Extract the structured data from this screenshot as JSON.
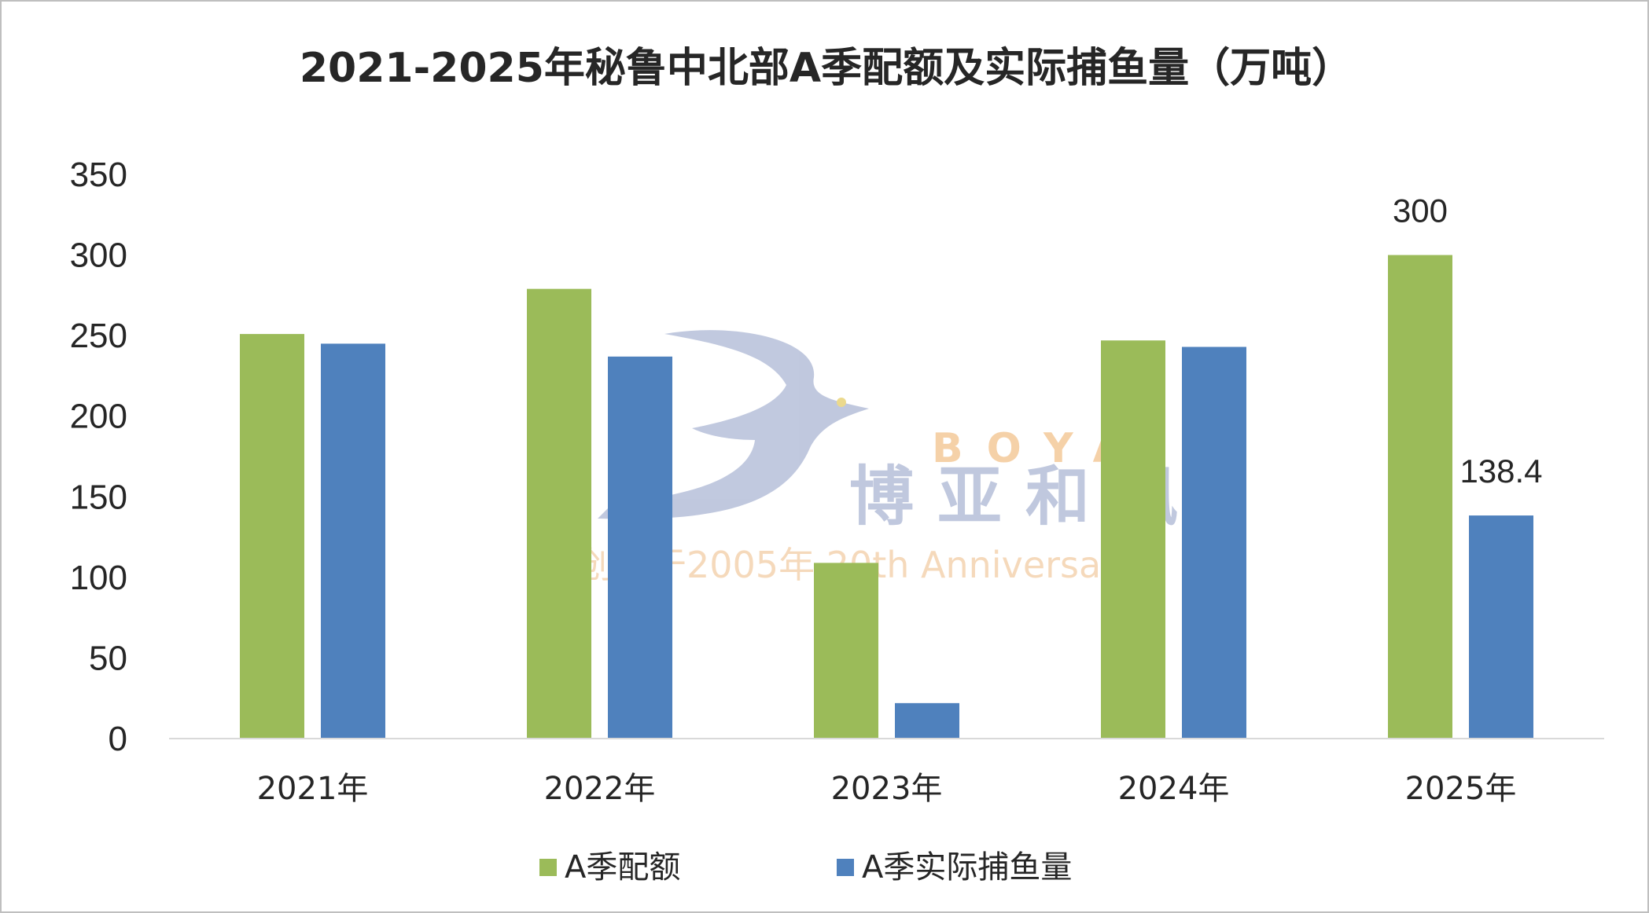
{
  "chart_data": {
    "type": "bar",
    "title": "2021-2025年秘鲁中北部A季配额及实际捕鱼量（万吨）",
    "categories": [
      "2021年",
      "2022年",
      "2023年",
      "2024年",
      "2025年"
    ],
    "series": [
      {
        "name": "A季配额",
        "values": [
          251,
          279,
          109,
          247,
          300
        ],
        "color": "#9bbb59",
        "data_labels": [
          null,
          null,
          null,
          null,
          "300"
        ]
      },
      {
        "name": "A季实际捕鱼量",
        "values": [
          245,
          237,
          22,
          243,
          138.4
        ],
        "color": "#4f81bd",
        "data_labels": [
          null,
          null,
          null,
          null,
          "138.4"
        ]
      }
    ],
    "ylim": [
      0,
      350
    ],
    "yticks": [
      0,
      50,
      100,
      150,
      200,
      250,
      300,
      350
    ],
    "grid": false,
    "legend_position": "bottom",
    "xlabel": "",
    "ylabel": ""
  },
  "watermark": {
    "brand_en": "BOYA",
    "brand_cn": "博亚和讯",
    "tagline": "创刊于2005年 20th Anniversary",
    "colors": {
      "logo": "#b6bfd9",
      "accent": "#f4c99a"
    }
  }
}
